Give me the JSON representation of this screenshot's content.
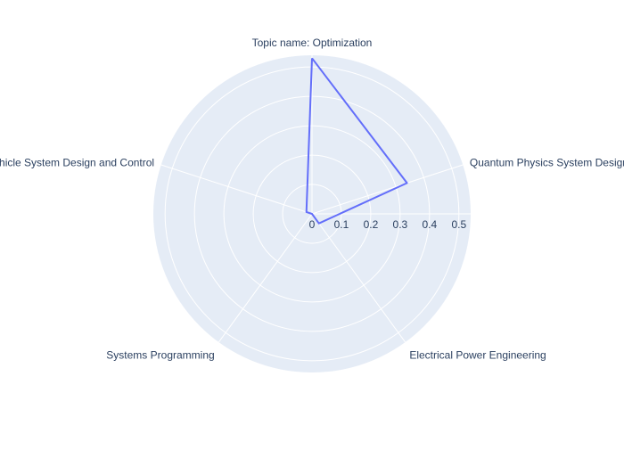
{
  "chart_data": {
    "type": "radar",
    "categories": [
      "Topic name: Optimization",
      "Quantum Physics System Design",
      "Electrical Power Engineering",
      "Systems Programming",
      "Vehicle System Design and Control"
    ],
    "series": [
      {
        "values": [
          0.53,
          0.34,
          0.04,
          0.0,
          0.02
        ]
      }
    ],
    "radial_ticks": [
      "0",
      "0.1",
      "0.2",
      "0.3",
      "0.4",
      "0.5"
    ],
    "radial_tick_values": [
      0,
      0.1,
      0.2,
      0.3,
      0.4,
      0.5
    ],
    "radial_range": [
      0,
      0.54
    ],
    "grid": true,
    "colors": {
      "background": "#E5ECF6",
      "grid": "#FFFFFF",
      "line": "#636EFA",
      "text": "#2A3F5F"
    }
  }
}
